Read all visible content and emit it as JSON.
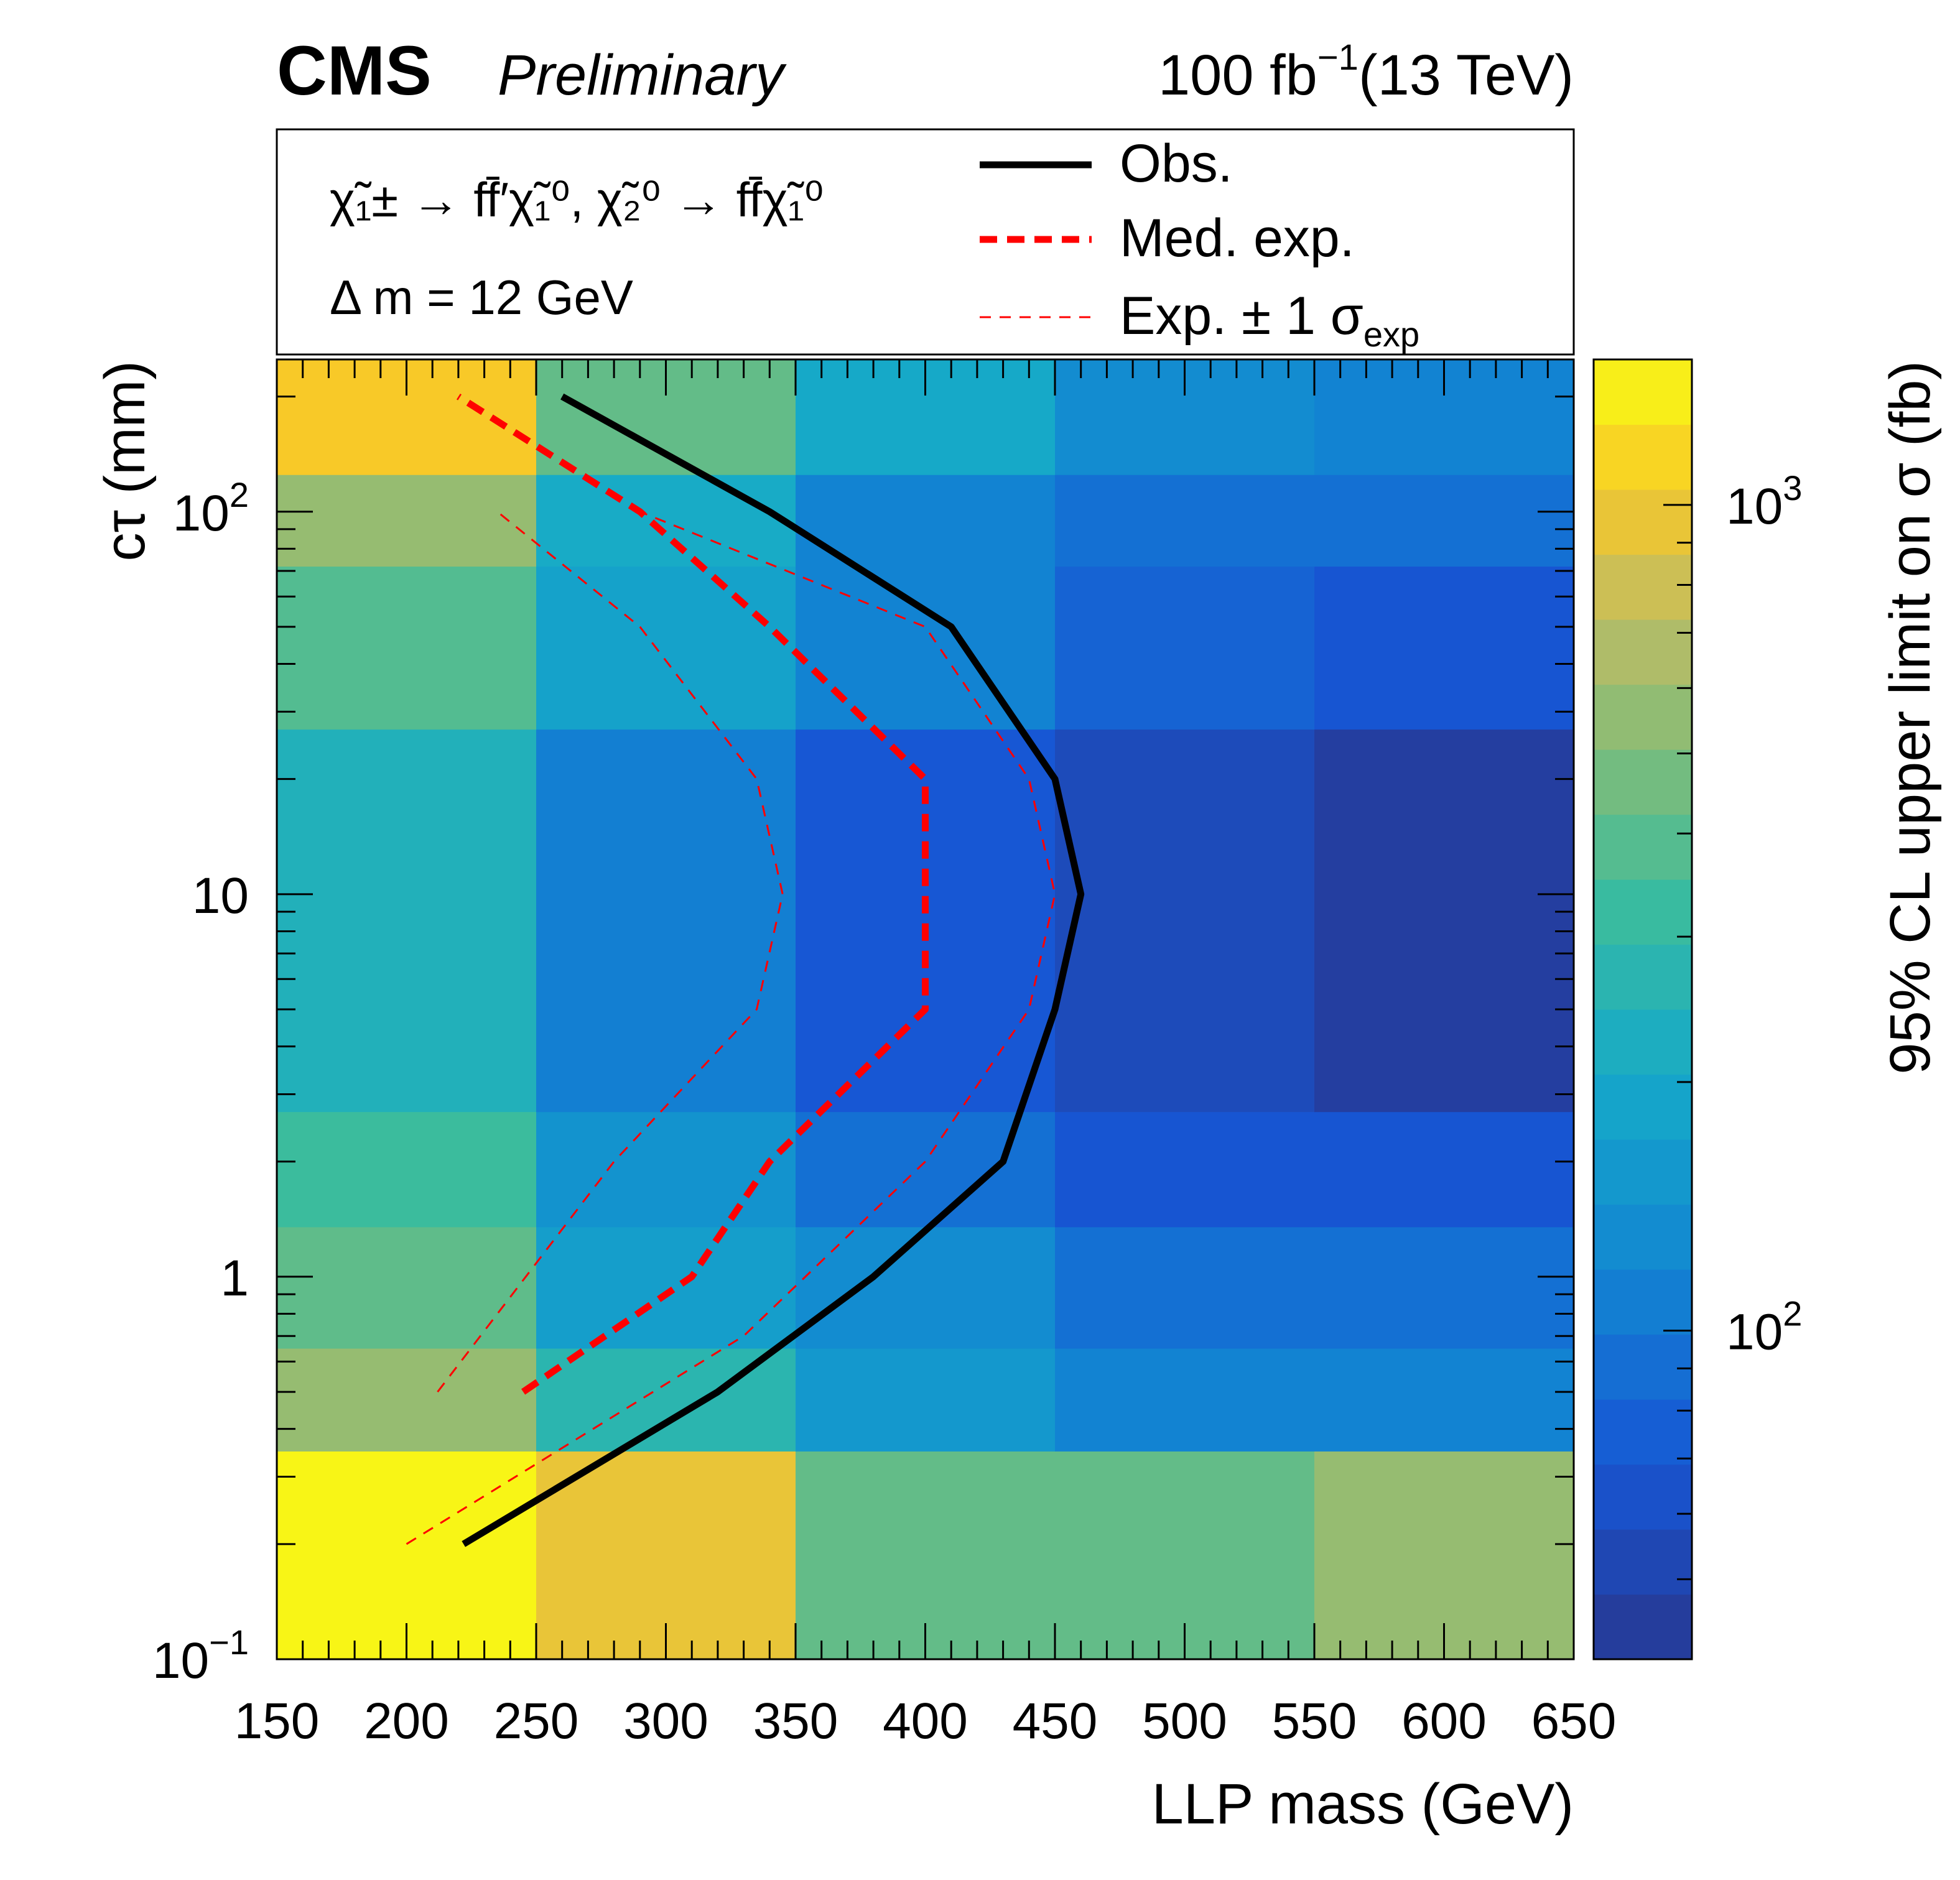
{
  "header": {
    "experiment": "CMS",
    "status": "Preliminary",
    "luminosity": "100 fb",
    "luminosity_exp": "−1",
    "energy": "(13 TeV)"
  },
  "legend": {
    "process_line": "χ̃₁± → ff̄′χ̃₁⁰, χ̃₂⁰ → ff̄χ̃₁⁰",
    "delta_m": "Δ m = 12 GeV",
    "entries": [
      {
        "label": "Obs.",
        "style": "solid",
        "color": "#000000"
      },
      {
        "label": "Med. exp.",
        "style": "thick-dashed",
        "color": "#ff0000"
      },
      {
        "label": "Exp. ± 1 σ",
        "sub": "exp",
        "style": "thin-dashed",
        "color": "#ff0000"
      }
    ]
  },
  "chart_data": {
    "type": "heatmap",
    "xlabel": "LLP mass (GeV)",
    "ylabel": "cτ (mm)",
    "zlabel": "95% CL upper limit on σ (fb)",
    "x_scale": "linear",
    "y_scale": "log",
    "z_scale": "log",
    "xlim": [
      150,
      650
    ],
    "ylim": [
      0.1,
      250
    ],
    "zlim": [
      40,
      1500
    ],
    "x_ticks": [
      "150",
      "200",
      "250",
      "300",
      "350",
      "400",
      "450",
      "500",
      "550",
      "600",
      "650"
    ],
    "y_ticks": [
      {
        "value": 0.1,
        "label": "10",
        "exp": "−1"
      },
      {
        "value": 1,
        "label": "1",
        "exp": ""
      },
      {
        "value": 10,
        "label": "10",
        "exp": ""
      },
      {
        "value": 100,
        "label": "10",
        "exp": "2"
      }
    ],
    "z_ticks": [
      {
        "value": 100,
        "label": "10",
        "exp": "2"
      },
      {
        "value": 1000,
        "label": "10",
        "exp": "3"
      }
    ],
    "x_bins": [
      150,
      250,
      350,
      450,
      550,
      650
    ],
    "y_bins": [
      0.1,
      0.35,
      0.65,
      1.35,
      2.7,
      27,
      72,
      125,
      250
    ],
    "z_values": [
      [
        1450,
        950,
        420,
        420,
        570
      ],
      [
        570,
        270,
        155,
        115,
        115
      ],
      [
        410,
        170,
        130,
        92,
        92
      ],
      [
        330,
        145,
        92,
        68,
        68
      ],
      [
        240,
        110,
        70,
        56,
        45
      ],
      [
        380,
        180,
        115,
        80,
        68
      ],
      [
        570,
        210,
        115,
        92,
        92
      ],
      [
        1050,
        420,
        200,
        130,
        115
      ]
    ],
    "series": [
      {
        "name": "Obs.",
        "x": [
          222,
          320,
          380,
          430,
          450,
          460,
          450,
          410,
          340,
          260
        ],
        "y": [
          0.2,
          0.5,
          1,
          2,
          5,
          10,
          20,
          50,
          100,
          200
        ]
      },
      {
        "name": "Med. exp.",
        "x": [
          245,
          310,
          340,
          400,
          400,
          400,
          340,
          290,
          220
        ],
        "y": [
          0.5,
          1,
          2,
          5,
          10,
          20,
          50,
          100,
          200
        ]
      },
      {
        "name": "Exp. − 1 σ",
        "x": [
          212,
          280,
          335,
          345,
          335,
          290,
          235
        ],
        "y": [
          0.5,
          2,
          5,
          10,
          20,
          50,
          100
        ]
      },
      {
        "name": "Exp. + 1 σ",
        "x": [
          200,
          330,
          400,
          440,
          450,
          440,
          400,
          290
        ],
        "y": [
          0.2,
          0.7,
          2,
          5,
          10,
          20,
          50,
          100
        ]
      }
    ]
  }
}
